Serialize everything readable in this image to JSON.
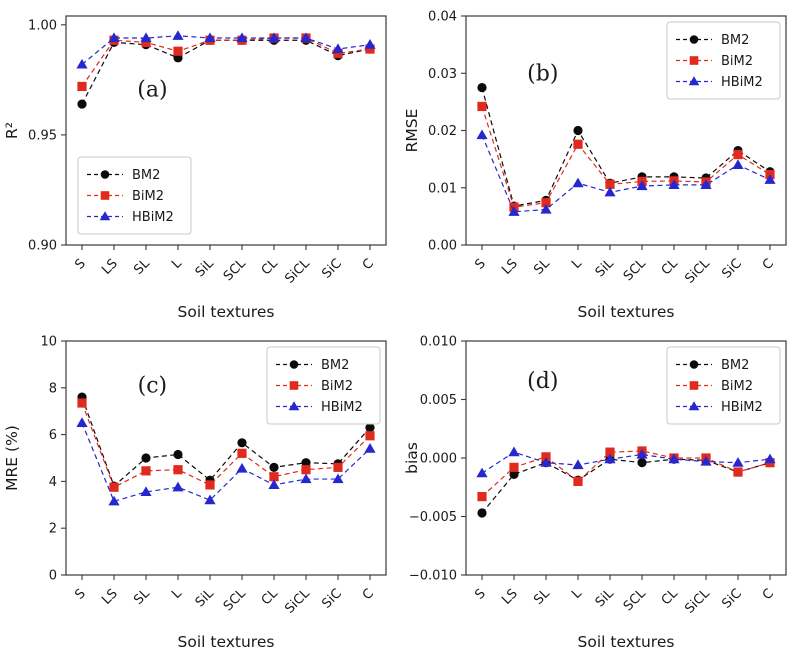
{
  "figure": {
    "background": "#ffffff",
    "spine_color": "#3a3a3a",
    "tick_color": "#3a3a3a"
  },
  "shared": {
    "xlabel": "Soil textures",
    "categories": [
      "S",
      "LS",
      "SL",
      "L",
      "SiL",
      "SCL",
      "CL",
      "SiCL",
      "SiC",
      "C"
    ],
    "legend_labels": [
      "BM2",
      "BiM2",
      "HBiM2"
    ],
    "series_colors": {
      "BM2": "#0b0b0b",
      "BiM2": "#e02a1d",
      "HBiM2": "#2727cf"
    },
    "series_markers": {
      "BM2": "circle",
      "BiM2": "square",
      "HBiM2": "triangle"
    }
  },
  "chart_data": [
    {
      "id": "a",
      "type": "line",
      "letter": "(a)",
      "letter_pos": [
        0.27,
        0.32
      ],
      "xlabel": "Soil textures",
      "ylabel": "R²",
      "categories": [
        "S",
        "LS",
        "SL",
        "L",
        "SiL",
        "SCL",
        "CL",
        "SiCL",
        "SiC",
        "C"
      ],
      "ylim": [
        0.9,
        1.004
      ],
      "yticks": [
        0.9,
        0.95,
        1.0
      ],
      "ytick_labels": [
        "0.90",
        "0.95",
        "1.00"
      ],
      "grid": false,
      "legend_position": "lower-left",
      "series": [
        {
          "name": "BM2",
          "marker": "circle",
          "color": "#0b0b0b",
          "values": [
            0.964,
            0.992,
            0.991,
            0.985,
            0.993,
            0.993,
            0.993,
            0.993,
            0.986,
            0.989
          ]
        },
        {
          "name": "BiM2",
          "marker": "square",
          "color": "#e02a1d",
          "values": [
            0.972,
            0.993,
            0.992,
            0.988,
            0.993,
            0.993,
            0.994,
            0.994,
            0.987,
            0.989
          ]
        },
        {
          "name": "HBiM2",
          "marker": "triangle",
          "color": "#2727cf",
          "values": [
            0.982,
            0.994,
            0.994,
            0.995,
            0.994,
            0.994,
            0.994,
            0.994,
            0.989,
            0.991
          ]
        }
      ]
    },
    {
      "id": "b",
      "type": "line",
      "letter": "(b)",
      "letter_pos": [
        0.24,
        0.25
      ],
      "xlabel": "Soil textures",
      "ylabel": "RMSE",
      "categories": [
        "S",
        "LS",
        "SL",
        "L",
        "SiL",
        "SCL",
        "CL",
        "SiCL",
        "SiC",
        "C"
      ],
      "ylim": [
        0.0,
        0.04
      ],
      "yticks": [
        0.0,
        0.01,
        0.02,
        0.03,
        0.04
      ],
      "ytick_labels": [
        "0.00",
        "0.01",
        "0.02",
        "0.03",
        "0.04"
      ],
      "grid": false,
      "legend_position": "upper-right",
      "series": [
        {
          "name": "BM2",
          "marker": "circle",
          "color": "#0b0b0b",
          "values": [
            0.0275,
            0.0068,
            0.0078,
            0.02,
            0.0108,
            0.0119,
            0.0119,
            0.0117,
            0.0165,
            0.0128
          ]
        },
        {
          "name": "BiM2",
          "marker": "square",
          "color": "#e02a1d",
          "values": [
            0.0242,
            0.0066,
            0.0074,
            0.0176,
            0.0106,
            0.0111,
            0.0112,
            0.011,
            0.0158,
            0.0123
          ]
        },
        {
          "name": "HBiM2",
          "marker": "triangle",
          "color": "#2727cf",
          "values": [
            0.0192,
            0.0058,
            0.0062,
            0.0108,
            0.0092,
            0.0103,
            0.0105,
            0.0105,
            0.014,
            0.0114
          ]
        }
      ]
    },
    {
      "id": "c",
      "type": "line",
      "letter": "(c)",
      "letter_pos": [
        0.27,
        0.19
      ],
      "xlabel": "Soil textures",
      "ylabel": "MRE (%)",
      "categories": [
        "S",
        "LS",
        "SL",
        "L",
        "SiL",
        "SCL",
        "CL",
        "SiCL",
        "SiC",
        "C"
      ],
      "ylim": [
        0,
        10
      ],
      "yticks": [
        0,
        2,
        4,
        6,
        8,
        10
      ],
      "ytick_labels": [
        "0",
        "2",
        "4",
        "6",
        "8",
        "10"
      ],
      "grid": false,
      "legend_position": "upper-right",
      "series": [
        {
          "name": "BM2",
          "marker": "circle",
          "color": "#0b0b0b",
          "values": [
            7.6,
            3.8,
            5.0,
            5.15,
            4.05,
            5.65,
            4.6,
            4.8,
            4.75,
            6.3
          ]
        },
        {
          "name": "BiM2",
          "marker": "square",
          "color": "#e02a1d",
          "values": [
            7.35,
            3.75,
            4.45,
            4.5,
            3.85,
            5.2,
            4.2,
            4.5,
            4.6,
            5.95
          ]
        },
        {
          "name": "HBiM2",
          "marker": "triangle",
          "color": "#2727cf",
          "values": [
            6.5,
            3.15,
            3.55,
            3.75,
            3.2,
            4.55,
            3.85,
            4.1,
            4.1,
            5.4
          ]
        }
      ]
    },
    {
      "id": "d",
      "type": "line",
      "letter": "(d)",
      "letter_pos": [
        0.24,
        0.17
      ],
      "xlabel": "Soil textures",
      "ylabel": "bias",
      "categories": [
        "S",
        "LS",
        "SL",
        "L",
        "SiL",
        "SCL",
        "CL",
        "SiCL",
        "SiC",
        "C"
      ],
      "ylim": [
        -0.01,
        0.01
      ],
      "yticks": [
        -0.01,
        -0.005,
        0.0,
        0.005,
        0.01
      ],
      "ytick_labels": [
        "−0.010",
        "−0.005",
        "0.000",
        "0.005",
        "0.010"
      ],
      "grid": false,
      "legend_position": "upper-right",
      "series": [
        {
          "name": "BM2",
          "marker": "circle",
          "color": "#0b0b0b",
          "values": [
            -0.0047,
            -0.0014,
            -0.0004,
            -0.0019,
            -0.0001,
            -0.0004,
            -0.0001,
            -0.0002,
            -0.0012,
            -0.0004
          ]
        },
        {
          "name": "BiM2",
          "marker": "square",
          "color": "#e02a1d",
          "values": [
            -0.0033,
            -0.0008,
            0.0001,
            -0.002,
            0.0005,
            0.0006,
            0.0,
            0.0,
            -0.0012,
            -0.0004
          ]
        },
        {
          "name": "HBiM2",
          "marker": "triangle",
          "color": "#2727cf",
          "values": [
            -0.0013,
            0.0005,
            -0.0004,
            -0.0006,
            -0.0001,
            0.0003,
            -0.0001,
            -0.0003,
            -0.0004,
            -0.0001
          ]
        }
      ]
    }
  ]
}
